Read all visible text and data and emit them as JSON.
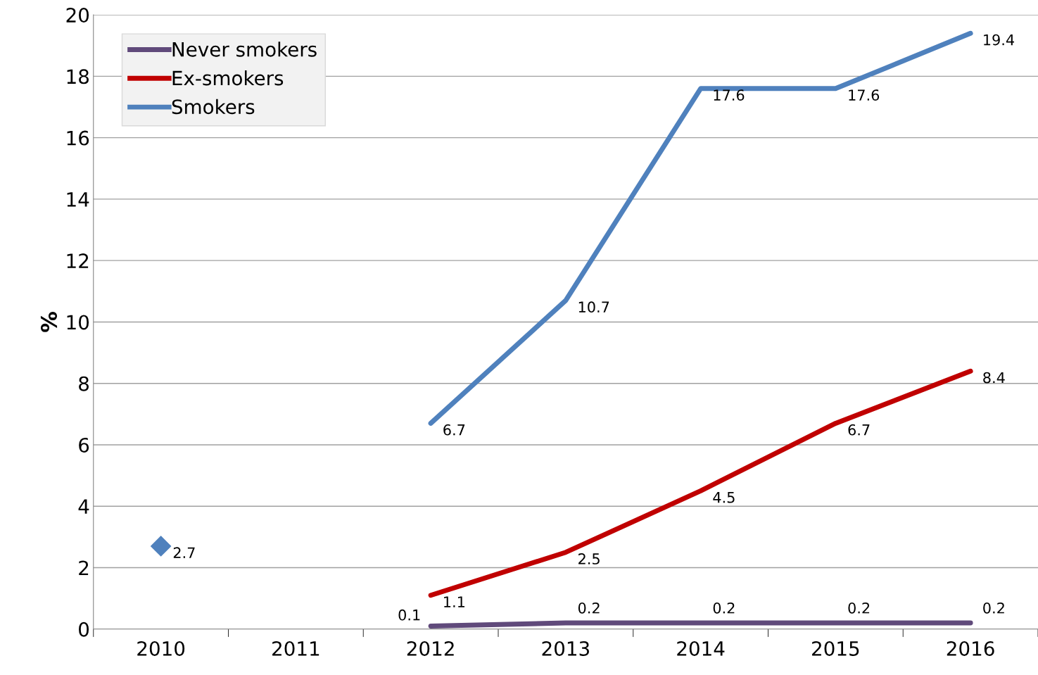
{
  "chart_data": {
    "type": "line",
    "ylabel": "%",
    "categories": [
      "2010",
      "2011",
      "2012",
      "2013",
      "2014",
      "2015",
      "2016"
    ],
    "series": [
      {
        "name": "Never smokers",
        "color": "#604a7b",
        "values": [
          null,
          null,
          0.1,
          0.2,
          0.2,
          0.2,
          0.2
        ]
      },
      {
        "name": "Ex-smokers",
        "color": "#c00000",
        "values": [
          null,
          null,
          1.1,
          2.5,
          4.5,
          6.7,
          8.4
        ]
      },
      {
        "name": "Smokers",
        "color": "#4f81bd",
        "values": [
          null,
          null,
          6.7,
          10.7,
          17.6,
          17.6,
          19.4
        ]
      },
      {
        "type": "scatter",
        "marker": "diamond",
        "color": "#4f81bd",
        "values": [
          2.7,
          null,
          null,
          null,
          null,
          null,
          null
        ]
      }
    ],
    "ylim": [
      0,
      20
    ],
    "yticks": [
      0,
      2,
      4,
      6,
      8,
      10,
      12,
      14,
      16,
      18,
      20
    ],
    "grid": "y",
    "legend": "top left",
    "data_labels": true,
    "marker": "none",
    "line_style": "solid"
  }
}
